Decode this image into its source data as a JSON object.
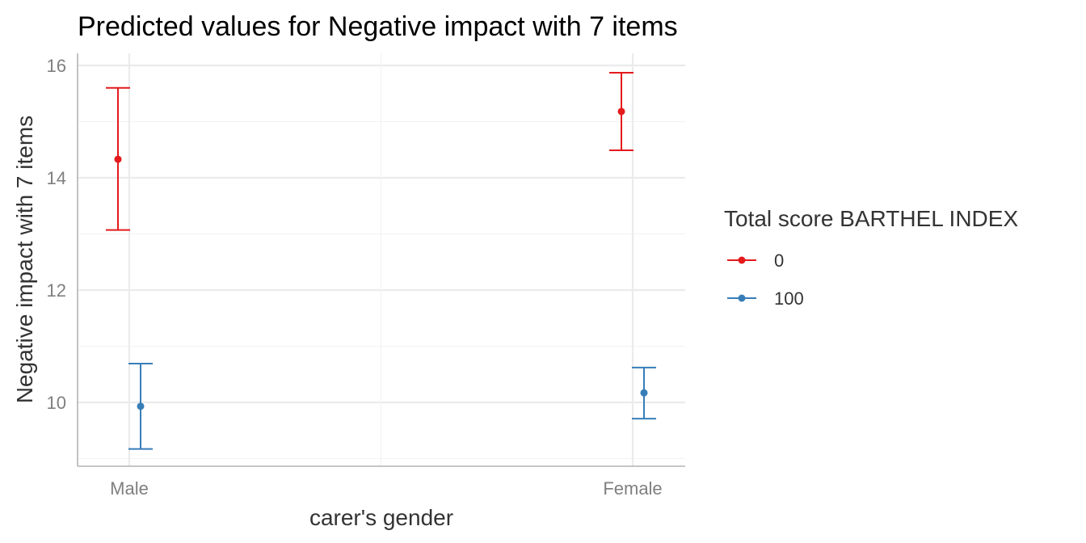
{
  "chart_data": {
    "type": "scatter",
    "title": "Predicted values for Negative impact with 7 items",
    "xlabel": "carer's gender",
    "ylabel": "Negative impact with 7 items",
    "categories": [
      "Male",
      "Female"
    ],
    "y_ticks": [
      10,
      12,
      14,
      16
    ],
    "y_tick_labels": [
      "10",
      "12",
      "14",
      "16"
    ],
    "ylim": [
      8.9,
      16.2
    ],
    "grid": true,
    "legend": {
      "title": "Total score BARTHEL INDEX",
      "position": "right"
    },
    "series": [
      {
        "name": "0",
        "color": "#e41a1c",
        "points": [
          {
            "category": "Male",
            "y": 14.33,
            "lower": 13.07,
            "upper": 15.6
          },
          {
            "category": "Female",
            "y": 15.18,
            "lower": 14.49,
            "upper": 15.87
          }
        ]
      },
      {
        "name": "100",
        "color": "#377eb8",
        "points": [
          {
            "category": "Male",
            "y": 9.93,
            "lower": 9.17,
            "upper": 10.69
          },
          {
            "category": "Female",
            "y": 10.17,
            "lower": 9.71,
            "upper": 10.62
          }
        ]
      }
    ]
  }
}
